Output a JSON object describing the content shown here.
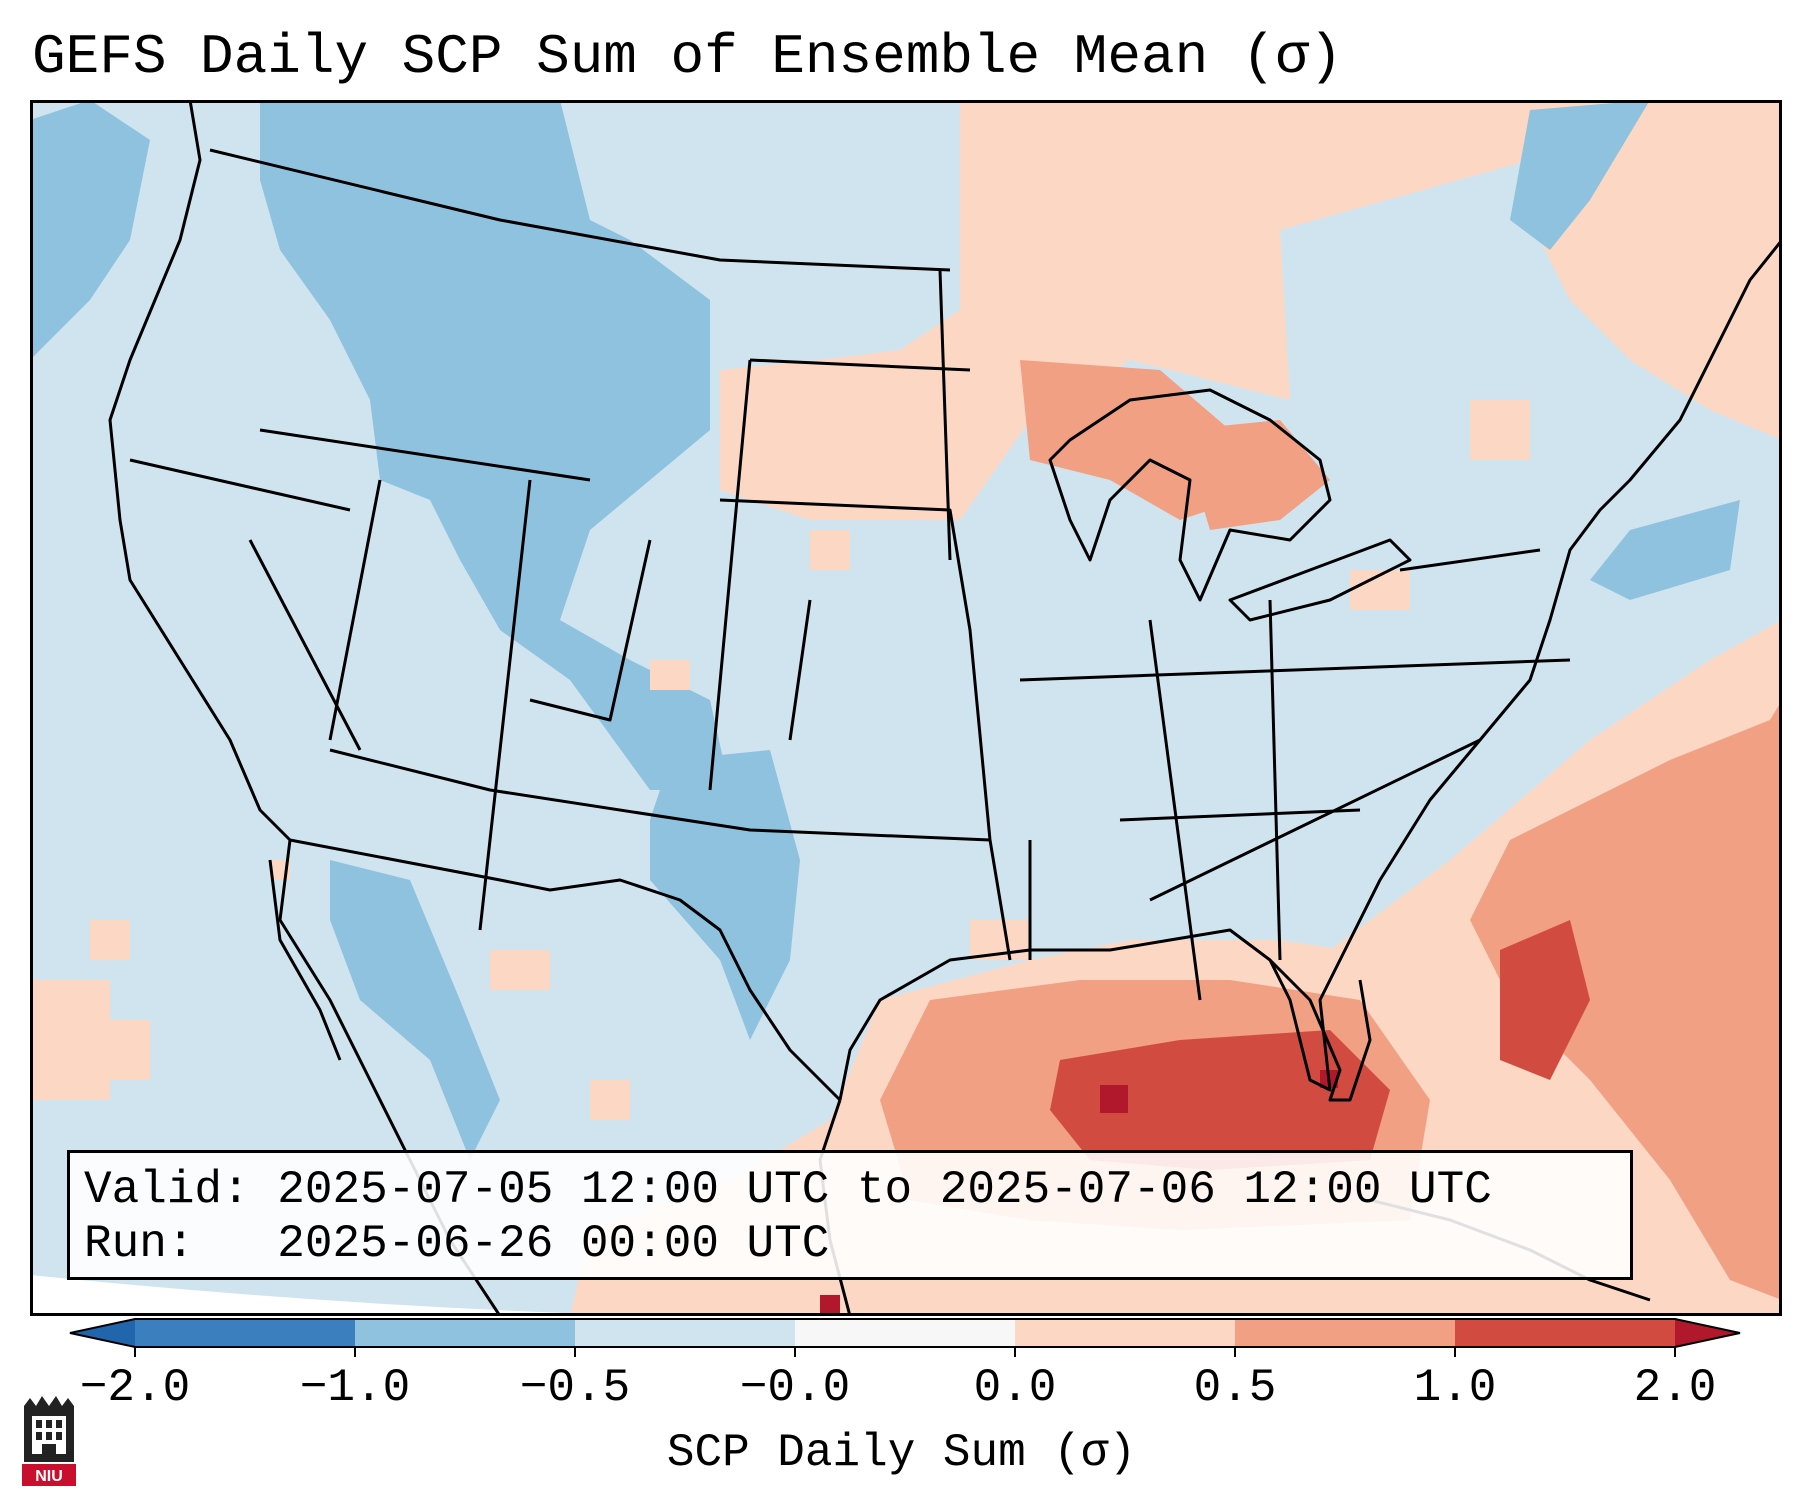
{
  "title": "GEFS Daily SCP Sum of Ensemble Mean (σ)",
  "info": {
    "valid_label": "Valid:",
    "valid_value": "2025-07-05 12:00 UTC to 2025-07-06 12:00 UTC",
    "run_label": "Run:",
    "run_value": "2025-06-26 00:00 UTC"
  },
  "colorbar": {
    "label": "SCP Daily Sum (σ)",
    "ticks": [
      "−2.0",
      "−1.0",
      "−0.5",
      "−0.0",
      "0.0",
      "0.5",
      "1.0",
      "2.0"
    ],
    "colors": [
      "#3b7fbf",
      "#8fc2de",
      "#d0e4f0",
      "#f7f7f7",
      "#fcd8c4",
      "#f1a083",
      "#d24b40"
    ],
    "under_color": "#2166ac",
    "over_color": "#b2182b"
  },
  "logo": {
    "text": "NIU"
  },
  "map_colors": {
    "ocean_background": "#d0e4f0",
    "light_blue": "#d0e4f0",
    "mid_blue": "#8fc2de",
    "light_red": "#fcd8c4",
    "mid_red": "#f1a083",
    "dark_red": "#d24b40",
    "deep_red": "#b2182b"
  }
}
